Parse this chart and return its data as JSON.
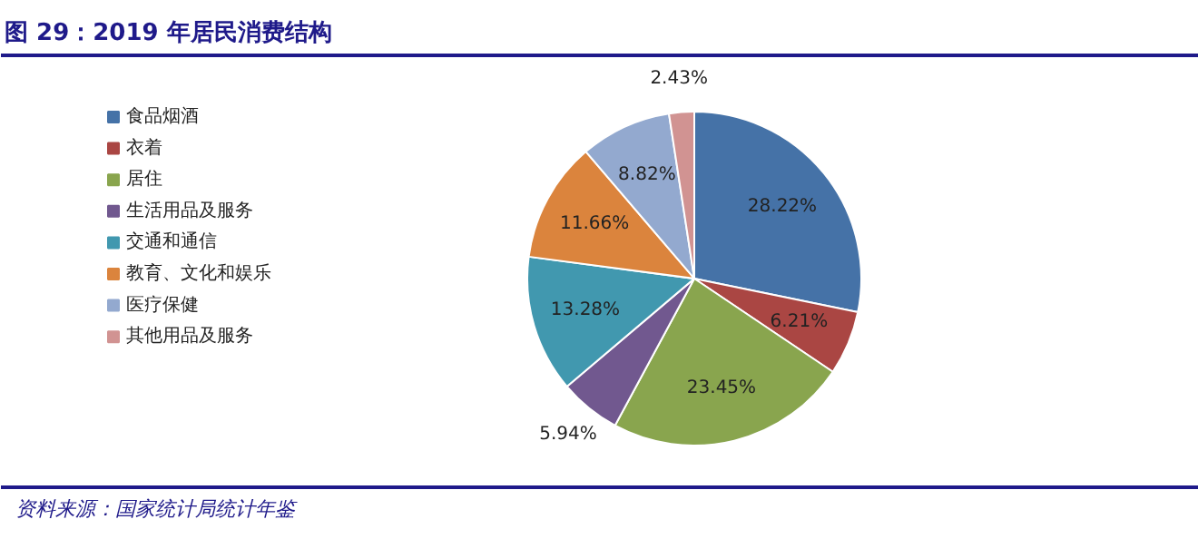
{
  "chart_data": {
    "type": "pie",
    "title": "图 29：2019 年居民消费结构",
    "categories": [
      "食品烟酒",
      "衣着",
      "居住",
      "生活用品及服务",
      "交通和通信",
      "教育、文化和娱乐",
      "医疗保健",
      "其他用品及服务"
    ],
    "values": [
      28.22,
      6.21,
      23.45,
      5.94,
      13.28,
      11.66,
      8.82,
      2.43
    ],
    "value_labels": [
      "28.22%",
      "6.21%",
      "23.45%",
      "5.94%",
      "13.28%",
      "11.66%",
      "8.82%",
      "2.43%"
    ],
    "colors": [
      "#4572a7",
      "#aa4643",
      "#89a54e",
      "#71588f",
      "#4198af",
      "#db843d",
      "#93a9cf",
      "#d19392"
    ],
    "legend": "left",
    "annotations": [
      "资料来源：国家统计局统计年鉴"
    ]
  }
}
